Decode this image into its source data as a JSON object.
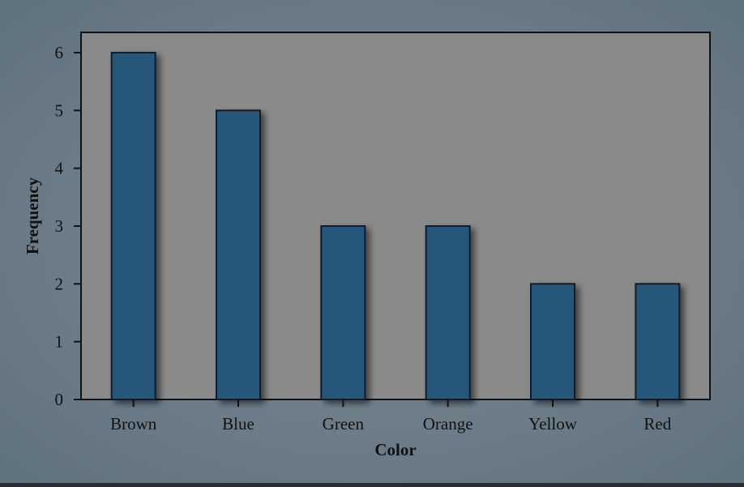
{
  "chart_data": {
    "type": "bar",
    "title": "",
    "xlabel": "Color",
    "ylabel": "Frequency",
    "categories": [
      "Brown",
      "Blue",
      "Green",
      "Orange",
      "Yellow",
      "Red"
    ],
    "values": [
      6,
      5,
      3,
      3,
      2,
      2
    ],
    "ylim": [
      0,
      6.35
    ],
    "yticks": [
      "0",
      "1",
      "2",
      "3",
      "4",
      "5",
      "6"
    ],
    "grid": false,
    "legend": "none",
    "colors": {
      "background_outer": "#6d7f8c",
      "plot_area": "#8a8a8a",
      "bar_fill": "#26567a",
      "bar_stroke": "#0d1f2e",
      "axis": "#111111"
    }
  }
}
